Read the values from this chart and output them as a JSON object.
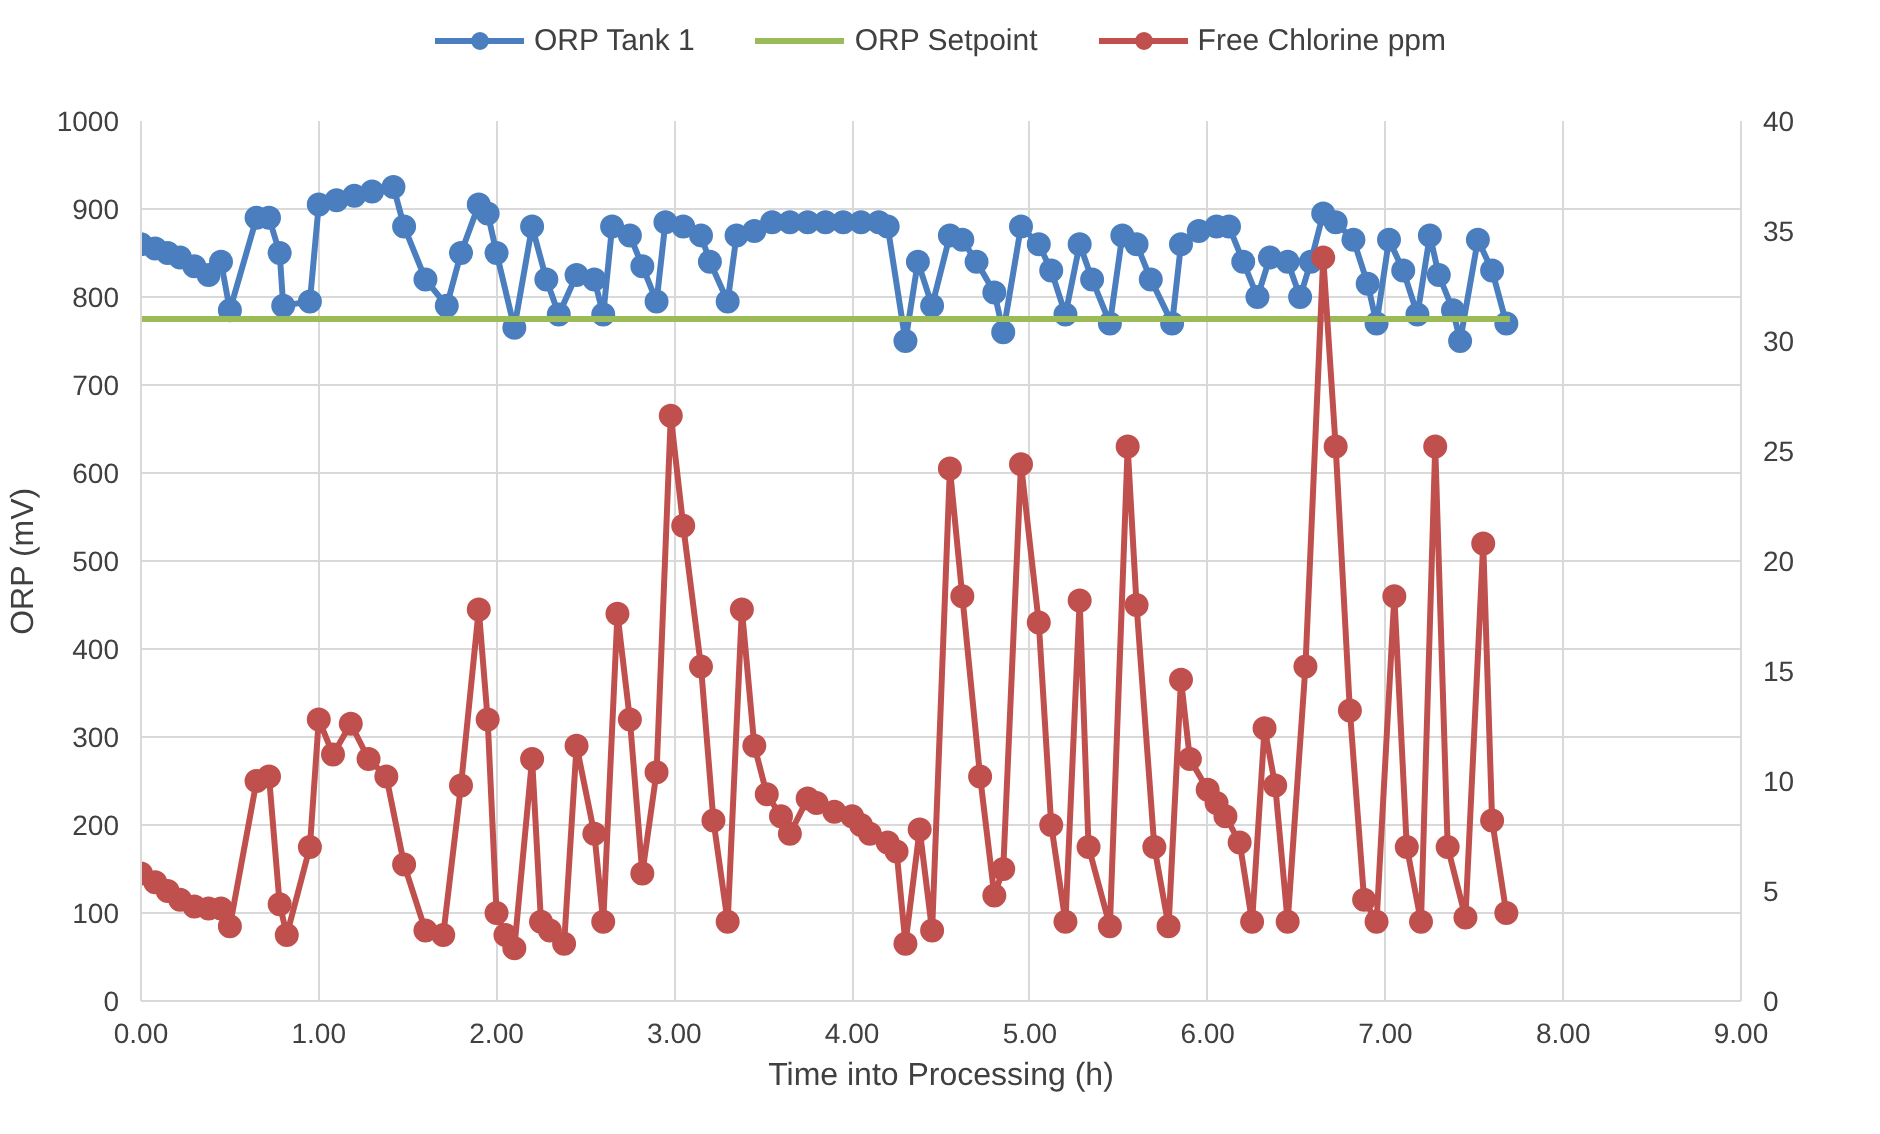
{
  "chart_data": {
    "type": "line",
    "xlabel": "Time into Processing (h)",
    "ylabel": "ORP (mV)",
    "xlim": [
      0,
      9
    ],
    "ylim": [
      0,
      1000
    ],
    "y2lim": [
      0,
      40
    ],
    "xticks": [
      {
        "value": 0,
        "label": "0.00"
      },
      {
        "value": 1,
        "label": "1.00"
      },
      {
        "value": 2,
        "label": "2.00"
      },
      {
        "value": 3,
        "label": "3.00"
      },
      {
        "value": 4,
        "label": "4.00"
      },
      {
        "value": 5,
        "label": "5.00"
      },
      {
        "value": 6,
        "label": "6.00"
      },
      {
        "value": 7,
        "label": "7.00"
      },
      {
        "value": 8,
        "label": "8.00"
      },
      {
        "value": 9,
        "label": "9.00"
      }
    ],
    "yticks": [
      0,
      100,
      200,
      300,
      400,
      500,
      600,
      700,
      800,
      900,
      1000
    ],
    "y2ticks": [
      0,
      5,
      10,
      15,
      20,
      25,
      30,
      35,
      40
    ],
    "grid": true,
    "legend": "top",
    "series": [
      {
        "name": "ORP Tank 1",
        "color": "#4a7ebf",
        "marker": "circle",
        "x": [
          0,
          0.08,
          0.15,
          0.22,
          0.3,
          0.38,
          0.45,
          0.5,
          0.65,
          0.72,
          0.78,
          0.8,
          0.95,
          1.0,
          1.1,
          1.2,
          1.3,
          1.42,
          1.48,
          1.6,
          1.72,
          1.8,
          1.9,
          1.95,
          2.0,
          2.1,
          2.2,
          2.28,
          2.35,
          2.45,
          2.55,
          2.6,
          2.65,
          2.75,
          2.82,
          2.9,
          2.95,
          3.05,
          3.15,
          3.2,
          3.3,
          3.35,
          3.45,
          3.55,
          3.65,
          3.75,
          3.85,
          3.95,
          4.05,
          4.15,
          4.2,
          4.3,
          4.37,
          4.45,
          4.55,
          4.62,
          4.7,
          4.8,
          4.85,
          4.95,
          5.05,
          5.12,
          5.2,
          5.28,
          5.35,
          5.45,
          5.52,
          5.6,
          5.68,
          5.8,
          5.85,
          5.95,
          6.05,
          6.12,
          6.2,
          6.28,
          6.35,
          6.45,
          6.52,
          6.58,
          6.65,
          6.72,
          6.82,
          6.9,
          6.95,
          7.02,
          7.1,
          7.18,
          7.25,
          7.3,
          7.38,
          7.42,
          7.52,
          7.6,
          7.68
        ],
        "values": [
          860,
          855,
          850,
          845,
          835,
          825,
          840,
          785,
          890,
          890,
          850,
          790,
          795,
          905,
          910,
          915,
          920,
          925,
          880,
          820,
          790,
          850,
          905,
          895,
          850,
          765,
          880,
          820,
          780,
          825,
          820,
          780,
          880,
          870,
          835,
          795,
          885,
          880,
          870,
          840,
          795,
          870,
          875,
          885,
          885,
          885,
          885,
          885,
          885,
          885,
          880,
          750,
          840,
          790,
          870,
          865,
          840,
          805,
          760,
          880,
          860,
          830,
          780,
          860,
          820,
          770,
          870,
          860,
          820,
          770,
          860,
          875,
          880,
          880,
          840,
          800,
          845,
          840,
          800,
          840,
          895,
          885,
          865,
          815,
          770,
          865,
          830,
          780,
          870,
          825,
          785,
          750,
          865,
          830,
          770
        ]
      },
      {
        "name": "ORP Setpoint",
        "color": "#9bbb59",
        "marker": "none",
        "x": [
          0,
          7.7
        ],
        "values": [
          775,
          775
        ]
      },
      {
        "name": "Free Chlorine ppm",
        "color": "#c0504d",
        "marker": "circle",
        "axis": "y2",
        "x": [
          0,
          0.08,
          0.15,
          0.22,
          0.3,
          0.38,
          0.45,
          0.5,
          0.65,
          0.72,
          0.78,
          0.82,
          0.95,
          1.0,
          1.08,
          1.18,
          1.28,
          1.38,
          1.48,
          1.6,
          1.7,
          1.8,
          1.9,
          1.95,
          2.0,
          2.05,
          2.1,
          2.2,
          2.25,
          2.3,
          2.38,
          2.45,
          2.55,
          2.6,
          2.68,
          2.75,
          2.82,
          2.9,
          2.98,
          3.05,
          3.15,
          3.22,
          3.3,
          3.38,
          3.45,
          3.52,
          3.6,
          3.65,
          3.75,
          3.8,
          3.9,
          4.0,
          4.05,
          4.1,
          4.2,
          4.25,
          4.3,
          4.38,
          4.45,
          4.55,
          4.62,
          4.72,
          4.8,
          4.85,
          4.95,
          5.05,
          5.12,
          5.2,
          5.28,
          5.33,
          5.45,
          5.55,
          5.6,
          5.7,
          5.78,
          5.85,
          5.9,
          6.0,
          6.05,
          6.1,
          6.18,
          6.25,
          6.32,
          6.38,
          6.45,
          6.55,
          6.65,
          6.72,
          6.8,
          6.88,
          6.95,
          7.05,
          7.12,
          7.2,
          7.28,
          7.35,
          7.45,
          7.55,
          7.6,
          7.68
        ],
        "values": [
          5.8,
          5.4,
          5.0,
          4.6,
          4.3,
          4.2,
          4.2,
          3.4,
          10.0,
          10.2,
          4.4,
          3.0,
          7.0,
          12.8,
          11.2,
          12.6,
          11.0,
          10.2,
          6.2,
          3.2,
          3.0,
          9.8,
          17.8,
          12.8,
          4.0,
          3.0,
          2.4,
          11.0,
          3.6,
          3.2,
          2.6,
          11.6,
          7.6,
          3.6,
          17.6,
          12.8,
          5.8,
          10.4,
          26.6,
          21.6,
          15.2,
          8.2,
          3.6,
          17.8,
          11.6,
          9.4,
          8.4,
          7.6,
          9.2,
          9.0,
          8.6,
          8.4,
          8.0,
          7.6,
          7.2,
          6.8,
          2.6,
          7.8,
          3.2,
          24.2,
          18.4,
          10.2,
          4.8,
          6.0,
          24.4,
          17.2,
          8.0,
          3.6,
          18.2,
          7.0,
          3.4,
          25.2,
          18.0,
          7.0,
          3.4,
          14.6,
          11.0,
          9.6,
          9.0,
          8.4,
          7.2,
          3.6,
          12.4,
          9.8,
          3.6,
          15.2,
          33.8,
          25.2,
          13.2,
          4.6,
          3.6,
          18.4,
          7.0,
          3.6,
          25.2,
          7.0,
          3.8,
          20.8,
          8.2,
          4.0
        ]
      }
    ]
  }
}
